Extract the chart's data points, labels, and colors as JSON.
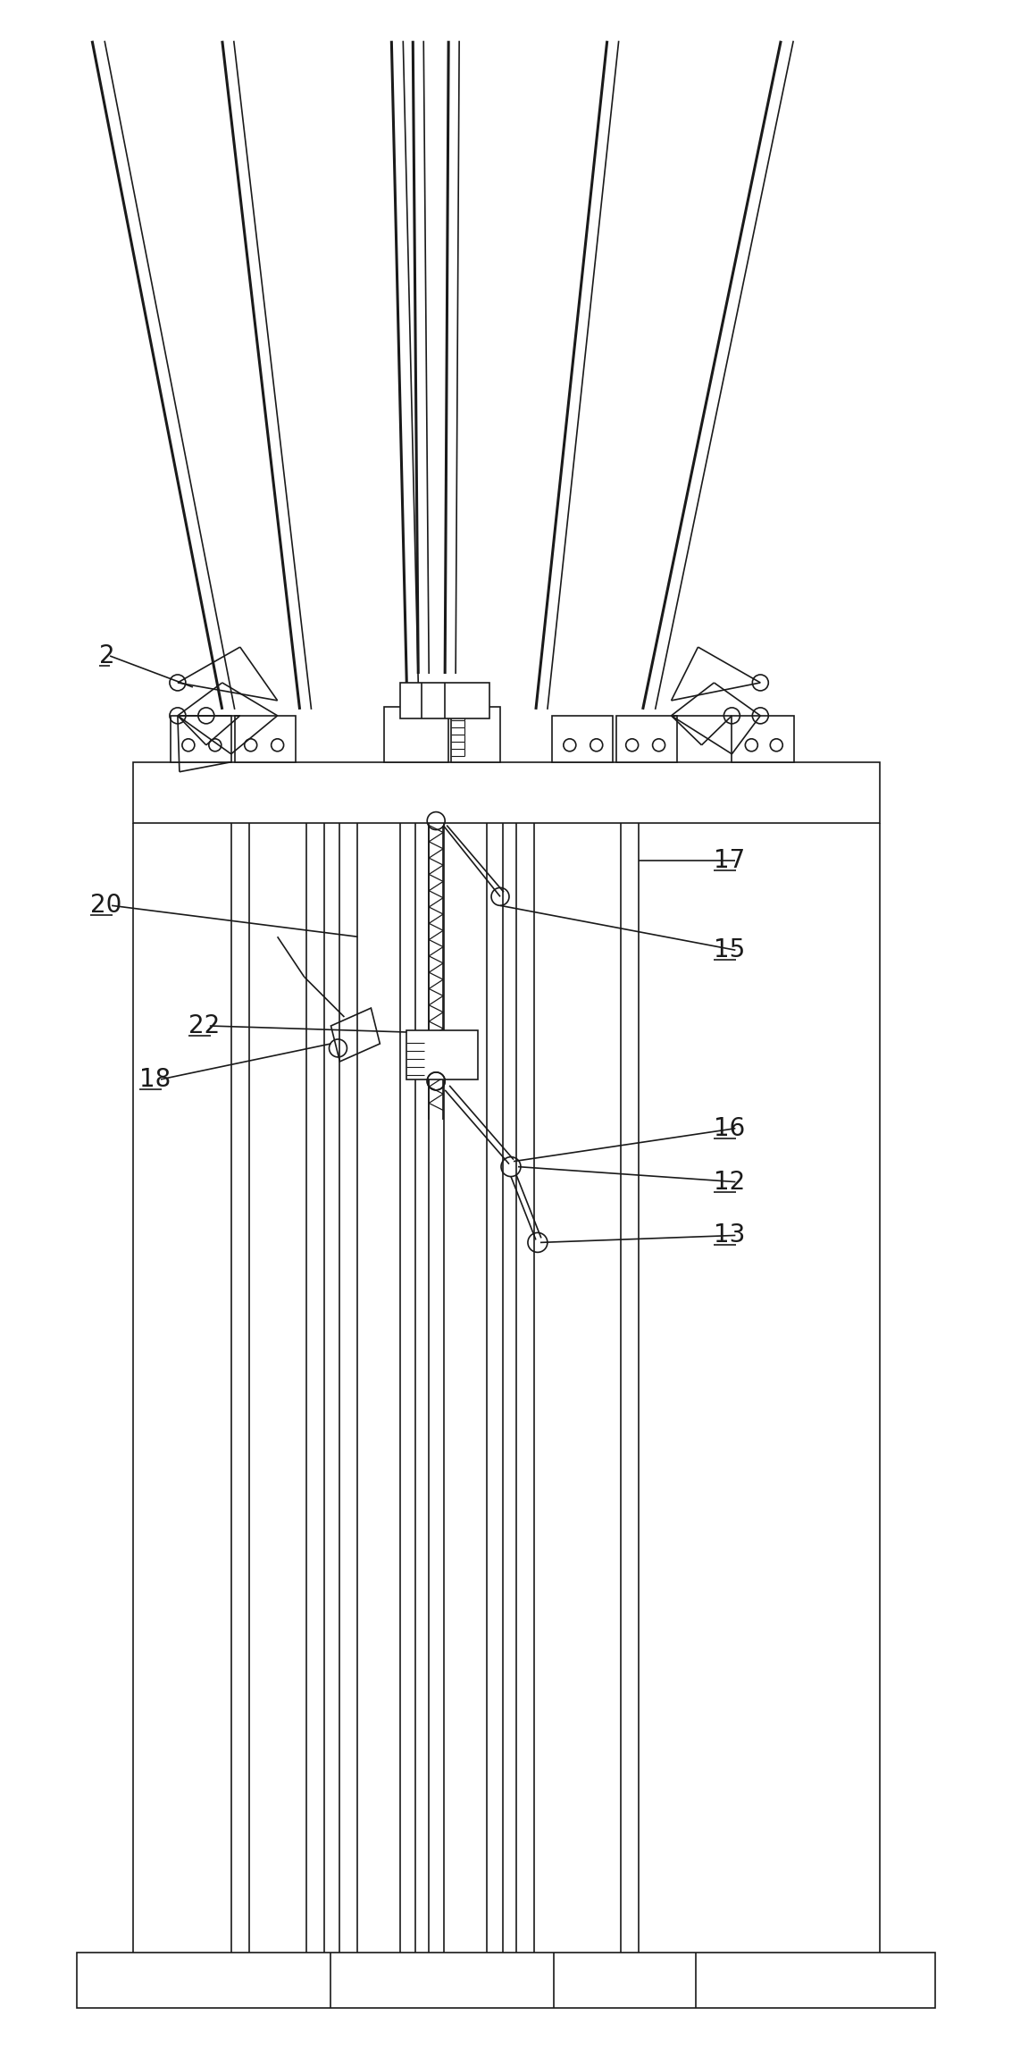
{
  "bg_color": "#ffffff",
  "line_color": "#1a1a1a",
  "lw": 1.2,
  "tlw": 2.2,
  "fig_width": 11.33,
  "fig_height": 23.03,
  "dpi": 100
}
